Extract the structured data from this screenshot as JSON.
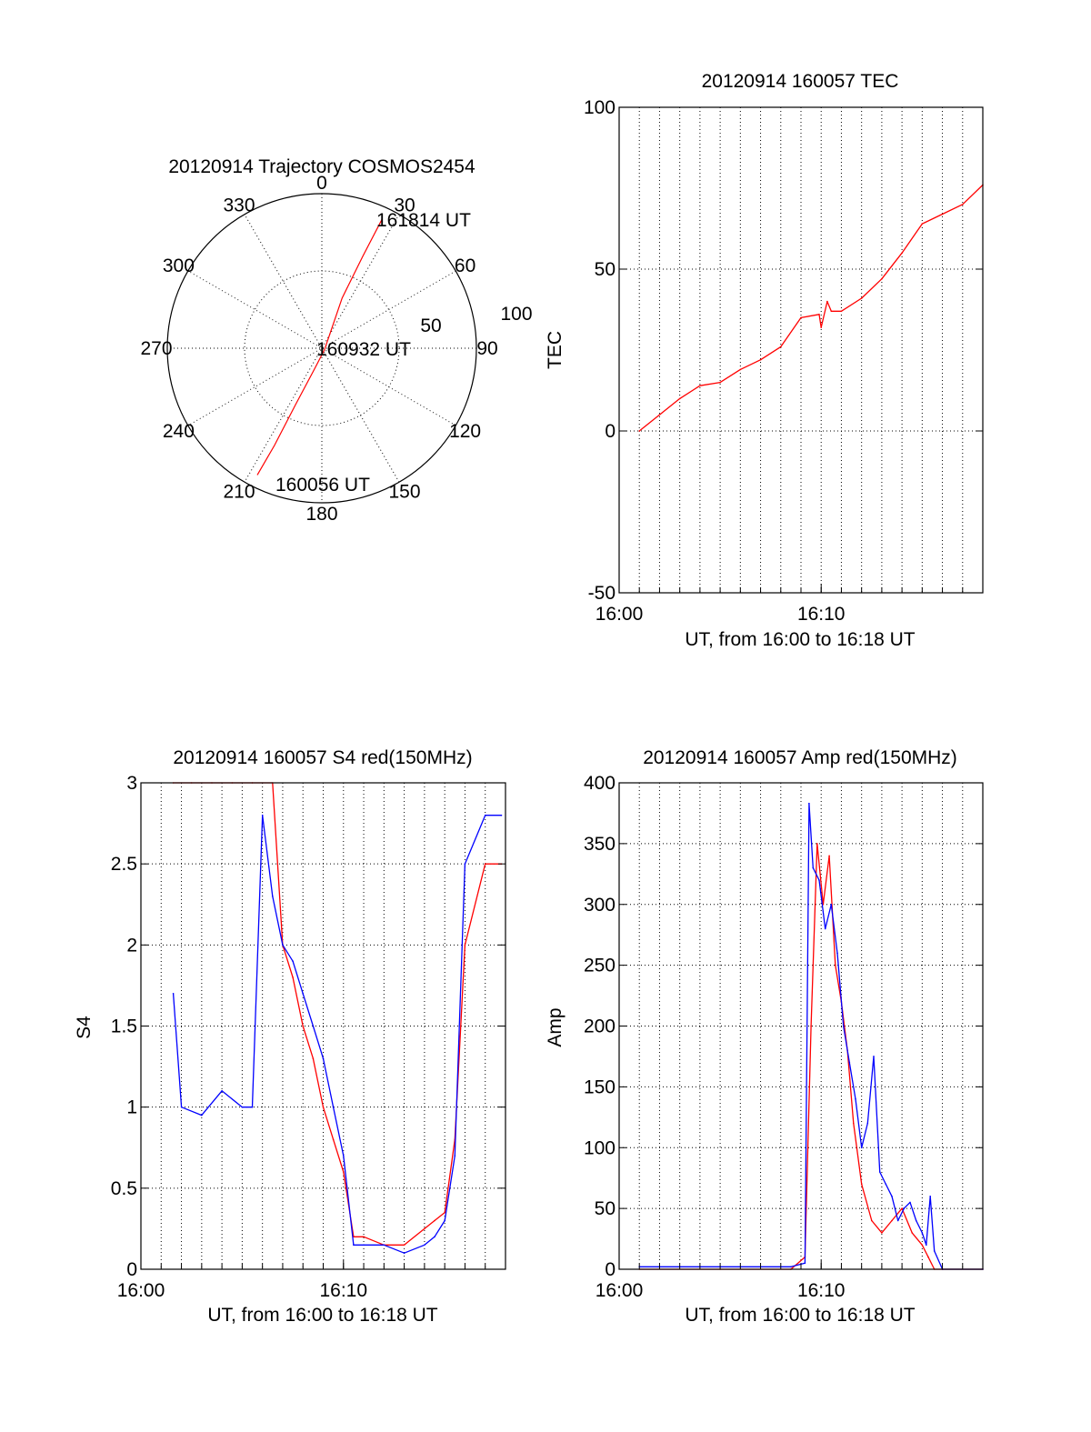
{
  "colors": {
    "red": "#ff0000",
    "blue": "#0000ff",
    "axis": "#000000",
    "background": "#ffffff"
  },
  "chart_data": [
    {
      "id": "trajectory",
      "type": "polar",
      "title": "20120914 Trajectory COSMOS2454",
      "azimuth_labels": [
        "0",
        "30",
        "60",
        "90",
        "120",
        "150",
        "180",
        "210",
        "240",
        "270",
        "300",
        "330"
      ],
      "radial_labels": [
        "50",
        "100"
      ],
      "radial_range": [
        0,
        100
      ],
      "series": [
        {
          "color": "#ff0000",
          "points": [
            {
              "az": 207,
              "r": 92
            },
            {
              "az": 206,
              "r": 70
            },
            {
              "az": 205,
              "r": 40
            },
            {
              "az": 200,
              "r": 15
            },
            {
              "az": 120,
              "r": 2
            },
            {
              "az": 22,
              "r": 35
            },
            {
              "az": 24,
              "r": 65
            },
            {
              "az": 25,
              "r": 92
            }
          ]
        }
      ],
      "annotations": [
        {
          "text": "161814 UT",
          "az": 25,
          "r": 92
        },
        {
          "text": "160932 UT",
          "az": 120,
          "r": 2
        },
        {
          "text": "160056 UT",
          "az": 207,
          "r": 92
        }
      ]
    },
    {
      "id": "tec",
      "type": "line",
      "title": "20120914 160057 TEC",
      "xlabel": "UT, from 16:00 to 16:18 UT",
      "ylabel": "TEC",
      "xlim": [
        0,
        18
      ],
      "ylim": [
        -50,
        100
      ],
      "xticks": [
        {
          "v": 0,
          "label": "16:00"
        },
        {
          "v": 10,
          "label": "16:10"
        }
      ],
      "yticks": [
        {
          "v": -50,
          "label": "-50"
        },
        {
          "v": 0,
          "label": "0"
        },
        {
          "v": 50,
          "label": "50"
        },
        {
          "v": 100,
          "label": "100"
        }
      ],
      "grid": true,
      "series": [
        {
          "color": "#ff0000",
          "x": [
            1.0,
            2.0,
            3.0,
            4.0,
            5.0,
            6.0,
            7.0,
            8.0,
            9.0,
            9.9,
            10.0,
            10.3,
            10.5,
            11.0,
            12.0,
            13.0,
            14.0,
            15.0,
            16.0,
            17.0,
            18.0
          ],
          "y": [
            0,
            5,
            10,
            14,
            15,
            19,
            22,
            26,
            35,
            36,
            32,
            40,
            37,
            37,
            41,
            47,
            55,
            64,
            67,
            70,
            76
          ]
        }
      ]
    },
    {
      "id": "s4",
      "type": "line",
      "title": "20120914 160057 S4 red(150MHz)",
      "xlabel": "UT, from 16:00 to 16:18 UT",
      "ylabel": "S4",
      "xlim": [
        0,
        18
      ],
      "ylim": [
        0,
        3
      ],
      "xticks": [
        {
          "v": 0,
          "label": "16:00"
        },
        {
          "v": 10,
          "label": "16:10"
        }
      ],
      "yticks": [
        {
          "v": 0,
          "label": "0"
        },
        {
          "v": 0.5,
          "label": "0.5"
        },
        {
          "v": 1,
          "label": "1"
        },
        {
          "v": 1.5,
          "label": "1.5"
        },
        {
          "v": 2,
          "label": "2"
        },
        {
          "v": 2.5,
          "label": "2.5"
        },
        {
          "v": 3,
          "label": "3"
        }
      ],
      "grid": true,
      "series": [
        {
          "color": "#ff0000",
          "x": [
            1.6,
            2.5,
            3.5,
            4.5,
            5.5,
            6.5,
            7.0,
            7.5,
            8.0,
            8.5,
            9.0,
            9.5,
            10.0,
            10.5,
            11.0,
            12.0,
            13.0,
            14.0,
            14.5,
            15.0,
            15.5,
            16.0,
            17.0,
            17.8
          ],
          "y": [
            3.0,
            3.0,
            3.0,
            3.0,
            3.0,
            3.0,
            2.0,
            1.8,
            1.5,
            1.3,
            1.0,
            0.8,
            0.6,
            0.2,
            0.2,
            0.15,
            0.15,
            0.25,
            0.3,
            0.35,
            0.8,
            2.0,
            2.5,
            2.5
          ]
        },
        {
          "color": "#0000ff",
          "x": [
            1.6,
            2.0,
            3.0,
            4.0,
            5.0,
            5.5,
            6.0,
            6.5,
            7.0,
            7.5,
            8.0,
            8.5,
            9.0,
            9.5,
            10.0,
            10.5,
            11.0,
            12.0,
            13.0,
            14.0,
            14.5,
            15.0,
            15.5,
            16.0,
            17.0,
            17.8
          ],
          "y": [
            1.7,
            1.0,
            0.95,
            1.1,
            1.0,
            1.0,
            2.8,
            2.3,
            2.0,
            1.9,
            1.7,
            1.5,
            1.3,
            1.0,
            0.7,
            0.15,
            0.15,
            0.15,
            0.1,
            0.15,
            0.2,
            0.3,
            0.7,
            2.5,
            2.8,
            2.8
          ]
        }
      ]
    },
    {
      "id": "amp",
      "type": "line",
      "title": "20120914 160057 Amp red(150MHz)",
      "xlabel": "UT, from 16:00 to 16:18 UT",
      "ylabel": "Amp",
      "xlim": [
        0,
        18
      ],
      "ylim": [
        0,
        400
      ],
      "xticks": [
        {
          "v": 0,
          "label": "16:00"
        },
        {
          "v": 10,
          "label": "16:10"
        }
      ],
      "yticks": [
        {
          "v": 0,
          "label": "0"
        },
        {
          "v": 50,
          "label": "50"
        },
        {
          "v": 100,
          "label": "100"
        },
        {
          "v": 150,
          "label": "150"
        },
        {
          "v": 200,
          "label": "200"
        },
        {
          "v": 250,
          "label": "250"
        },
        {
          "v": 300,
          "label": "300"
        },
        {
          "v": 350,
          "label": "350"
        },
        {
          "v": 400,
          "label": "400"
        }
      ],
      "grid": true,
      "series": [
        {
          "color": "#ff0000",
          "x": [
            1.0,
            5.0,
            8.5,
            9.2,
            9.5,
            9.8,
            10.1,
            10.4,
            10.7,
            11.0,
            11.3,
            11.6,
            12.0,
            12.5,
            13.0,
            13.5,
            14.0,
            14.5,
            15.0,
            15.3,
            15.6,
            16.0,
            18.0
          ],
          "y": [
            0,
            0,
            0,
            10,
            200,
            350,
            300,
            340,
            250,
            220,
            180,
            120,
            70,
            40,
            30,
            40,
            50,
            30,
            20,
            10,
            0,
            0,
            0
          ]
        },
        {
          "color": "#0000ff",
          "x": [
            1.0,
            5.0,
            8.5,
            9.2,
            9.4,
            9.6,
            9.9,
            10.2,
            10.5,
            10.8,
            11.1,
            11.4,
            11.7,
            12.0,
            12.3,
            12.6,
            12.9,
            13.2,
            13.5,
            13.8,
            14.1,
            14.4,
            14.7,
            15.0,
            15.2,
            15.4,
            15.6,
            16.0,
            18.0
          ],
          "y": [
            2,
            2,
            2,
            5,
            383,
            330,
            320,
            280,
            300,
            260,
            200,
            170,
            140,
            100,
            120,
            175,
            80,
            70,
            60,
            40,
            50,
            55,
            40,
            30,
            20,
            60,
            15,
            0,
            0
          ]
        }
      ]
    }
  ]
}
